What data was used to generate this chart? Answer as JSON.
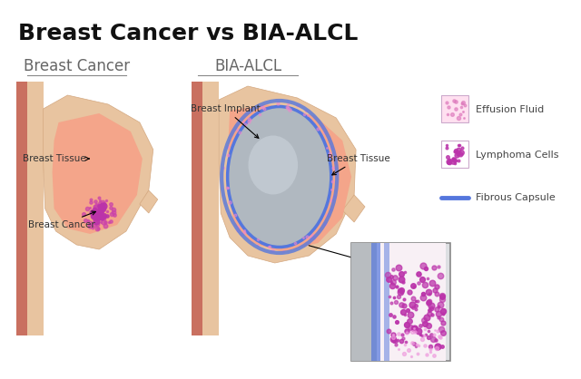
{
  "title": "Breast Cancer vs BIA-ALCL",
  "title_fontsize": 18,
  "title_fontweight": "bold",
  "background_color": "#ffffff",
  "left_label": "Breast Cancer",
  "right_label": "BIA-ALCL",
  "label_fontsize": 12,
  "skin_outer_color": "#E8C4A0",
  "skin_inner_color": "#F0D5B8",
  "muscle_color": "#C97060",
  "breast_tissue_color": "#F4A58A",
  "breast_tissue_light": "#F8C4B0",
  "implant_color": "#B0B8C0",
  "implant_highlight": "#D0D8E0",
  "capsule_color": "#5577DD",
  "effusion_color": "#FFE8F0",
  "cancer_color": "#CC44AA",
  "lymphoma_color": "#BB33AA",
  "annot_color": "#333333",
  "legend_box1_color": "#FFD0E8",
  "legend_box2_color": "#EE88CC",
  "legend_line_color": "#5577DD",
  "zoom_box_bg": "#E8EAEC",
  "zoom_box_border": "#888888"
}
